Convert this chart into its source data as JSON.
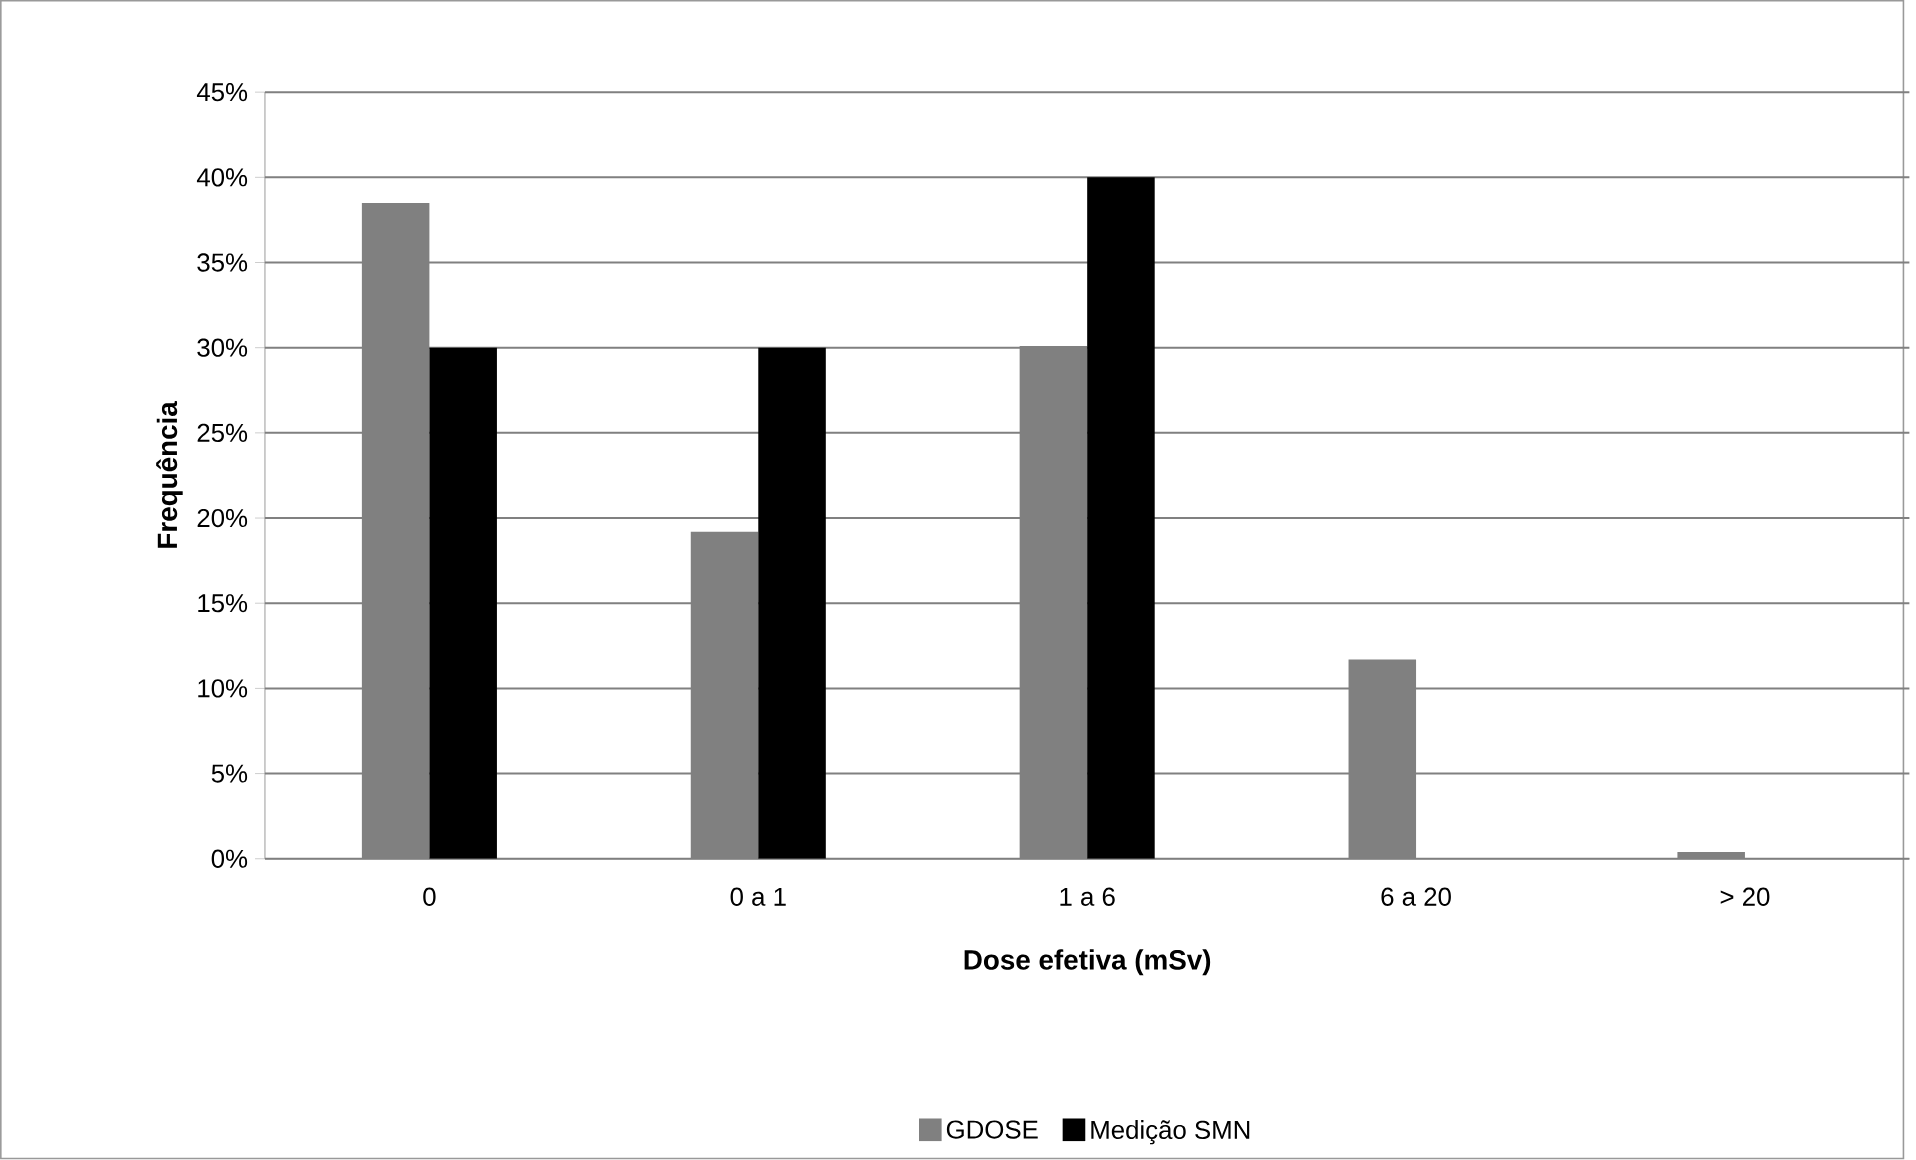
{
  "chart_data": {
    "type": "bar",
    "xlabel": "Dose efetiva (mSv)",
    "ylabel": "Frequência",
    "categories": [
      "0",
      "0 a 1",
      "1 a 6",
      "6 a 20",
      "> 20"
    ],
    "series": [
      {
        "name": "GDOSE",
        "color": "#808080",
        "values": [
          38.5,
          19.2,
          30.1,
          11.7,
          0.4
        ]
      },
      {
        "name": "Medição SMN",
        "color": "#000000",
        "values": [
          30,
          30,
          40,
          0,
          0
        ]
      }
    ],
    "ylim": [
      0,
      45
    ],
    "yticks": [
      {
        "value": 0,
        "label": "0%"
      },
      {
        "value": 5,
        "label": "5%"
      },
      {
        "value": 10,
        "label": "10%"
      },
      {
        "value": 15,
        "label": "15%"
      },
      {
        "value": 20,
        "label": "20%"
      },
      {
        "value": 25,
        "label": "25%"
      },
      {
        "value": 30,
        "label": "30%"
      },
      {
        "value": 35,
        "label": "35%"
      },
      {
        "value": 40,
        "label": "40%"
      },
      {
        "value": 45,
        "label": "45%"
      }
    ],
    "grid": "y",
    "legend": "bottom"
  }
}
